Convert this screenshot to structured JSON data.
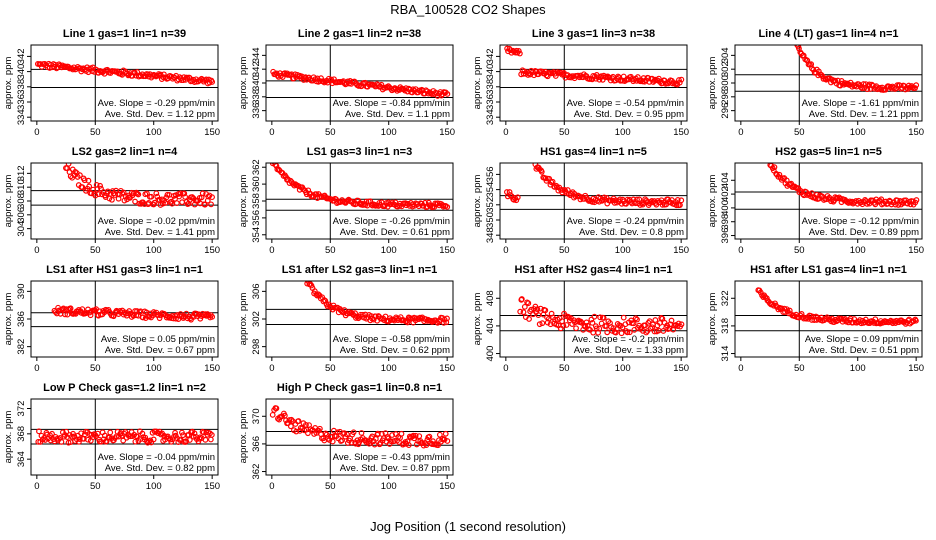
{
  "figure": {
    "title": "RBA_100528  CO2 Shapes",
    "xlabel": "Jog Position (1 second resolution)",
    "point_color": "#ff0000"
  },
  "chart_data": [
    {
      "type": "scatter",
      "title": "Line 1 gas=1 lin=1 n=39",
      "ylabel": "approx. ppm",
      "xlim": [
        -5,
        155
      ],
      "ylim": [
        333.5,
        343.5
      ],
      "yticks": [
        334,
        336,
        338,
        340,
        342
      ],
      "xticks": [
        0,
        50,
        100,
        150
      ],
      "vline": 50,
      "hlines": [
        340.3,
        337.9
      ],
      "slope": "Ave. Slope = -0.29 ppm/min",
      "stddev": "Ave. Std. Dev. = 1.12 ppm",
      "series": [
        {
          "x": [
            1,
            150
          ],
          "start": 340.9,
          "end": 338.7,
          "spread": 0.35,
          "curve": "linear"
        }
      ]
    },
    {
      "type": "scatter",
      "title": "Line 2 gas=1 lin=2 n=38",
      "ylabel": "approx. ppm",
      "xlim": [
        -5,
        155
      ],
      "ylim": [
        334.5,
        345.5
      ],
      "yticks": [
        336,
        338,
        340,
        342,
        344
      ],
      "xticks": [
        0,
        50,
        100,
        150
      ],
      "vline": 50,
      "hlines": [
        340.3,
        337.9
      ],
      "slope": "Ave. Slope = -0.84 ppm/min",
      "stddev": "Ave. Std. Dev. = 1.1 ppm",
      "series": [
        {
          "x": [
            1,
            150
          ],
          "start": 341.3,
          "end": 338.3,
          "spread": 0.35,
          "curve": "linear"
        }
      ]
    },
    {
      "type": "scatter",
      "title": "Line 3 gas=1 lin=3 n=38",
      "ylabel": "approx. ppm",
      "xlim": [
        -5,
        155
      ],
      "ylim": [
        333.5,
        343.5
      ],
      "yticks": [
        334,
        336,
        338,
        340,
        342
      ],
      "xticks": [
        0,
        50,
        100,
        150
      ],
      "vline": 50,
      "hlines": [
        340.3,
        337.9
      ],
      "slope": "Ave. Slope = -0.54 ppm/min",
      "stddev": "Ave. Std. Dev. = 0.95 ppm",
      "series": [
        {
          "x": [
            1,
            12
          ],
          "start": 342.8,
          "end": 342.4,
          "spread": 0.3,
          "curve": "linear"
        },
        {
          "x": [
            13,
            150
          ],
          "start": 339.9,
          "end": 338.6,
          "spread": 0.35,
          "curve": "linear"
        }
      ]
    },
    {
      "type": "scatter",
      "title": "Line 4 (LT) gas=1 lin=4 n=1",
      "ylabel": "approx. ppm",
      "xlim": [
        -5,
        155
      ],
      "ylim": [
        294.5,
        305.5
      ],
      "yticks": [
        296,
        298,
        300,
        302,
        304
      ],
      "xticks": [
        0,
        50,
        100,
        150
      ],
      "vline": 50,
      "hlines": [
        301.2,
        298.8
      ],
      "slope": "Ave. Slope = -1.61 ppm/min",
      "stddev": "Ave. Std. Dev. = 1.21 ppm",
      "series": [
        {
          "x": [
            47,
            150
          ],
          "start": 305.8,
          "end": 299.3,
          "spread": 0.4,
          "curve": "exp"
        }
      ]
    },
    {
      "type": "scatter",
      "title": "LS2 gas=2 lin=1 n=4",
      "ylabel": "approx. ppm",
      "xlim": [
        -5,
        155
      ],
      "ylim": [
        302.5,
        313.5
      ],
      "yticks": [
        304,
        306,
        308,
        310,
        312
      ],
      "xticks": [
        0,
        50,
        100,
        150
      ],
      "vline": 50,
      "hlines": [
        309.5,
        307.4
      ],
      "slope": "Ave. Slope = -0.02 ppm/min",
      "stddev": "Ave. Std. Dev. = 1.41 ppm",
      "series": [
        {
          "x": [
            25,
            150
          ],
          "start": 313,
          "end": 308.2,
          "spread": 0.9,
          "curve": "exp"
        }
      ]
    },
    {
      "type": "scatter",
      "title": "LS1 gas=3 lin=1 n=3",
      "ylabel": "approx. ppm",
      "xlim": [
        -5,
        155
      ],
      "ylim": [
        353.5,
        362.5
      ],
      "yticks": [
        354,
        356,
        358,
        360,
        362
      ],
      "xticks": [
        0,
        50,
        100,
        150
      ],
      "vline": 50,
      "hlines": [
        358.2,
        356.9
      ],
      "slope": "Ave. Slope = -0.26 ppm/min",
      "stddev": "Ave. Std. Dev. = 0.61 ppm",
      "series": [
        {
          "x": [
            1,
            150
          ],
          "start": 362.5,
          "end": 357.5,
          "spread": 0.3,
          "curve": "exp"
        }
      ]
    },
    {
      "type": "scatter",
      "title": "HS1 gas=4 lin=1 n=5",
      "ylabel": "approx. ppm",
      "xlim": [
        -5,
        155
      ],
      "ylim": [
        347.5,
        357.5
      ],
      "yticks": [
        348,
        350,
        352,
        354,
        356
      ],
      "xticks": [
        0,
        50,
        100,
        150
      ],
      "vline": 50,
      "hlines": [
        353.2,
        351.4
      ],
      "slope": "Ave. Slope = -0.24 ppm/min",
      "stddev": "Ave. Std. Dev. = 0.8 ppm",
      "series": [
        {
          "x": [
            1,
            10
          ],
          "start": 353.5,
          "end": 352.8,
          "spread": 0.4,
          "curve": "linear"
        },
        {
          "x": [
            25,
            150
          ],
          "start": 357.2,
          "end": 352.3,
          "spread": 0.4,
          "curve": "exp"
        }
      ]
    },
    {
      "type": "scatter",
      "title": "HS2 gas=5 lin=1 n=5",
      "ylabel": "approx. ppm",
      "xlim": [
        -5,
        155
      ],
      "ylim": [
        395.5,
        406.5
      ],
      "yticks": [
        396,
        398,
        400,
        402,
        404
      ],
      "xticks": [
        0,
        50,
        100,
        150
      ],
      "vline": 50,
      "hlines": [
        402.3,
        399.8
      ],
      "slope": "Ave. Slope = -0.12 ppm/min",
      "stddev": "Ave. Std. Dev. = 0.89 ppm",
      "series": [
        {
          "x": [
            25,
            150
          ],
          "start": 406.5,
          "end": 400.8,
          "spread": 0.4,
          "curve": "exp"
        }
      ]
    },
    {
      "type": "scatter",
      "title": "LS1 after HS1 gas=3 lin=1 n=1",
      "ylabel": "approx. ppm",
      "xlim": [
        -5,
        155
      ],
      "ylim": [
        380.5,
        391.5
      ],
      "yticks": [
        382,
        386,
        390
      ],
      "xticks": [
        0,
        50,
        100,
        150
      ],
      "vline": 50,
      "hlines": [
        386.9,
        384.9
      ],
      "slope": "Ave. Slope = 0.05 ppm/min",
      "stddev": "Ave. Std. Dev. = 0.67 ppm",
      "series": [
        {
          "x": [
            15,
            150
          ],
          "start": 387.2,
          "end": 386.2,
          "spread": 0.5,
          "curve": "linear"
        }
      ]
    },
    {
      "type": "scatter",
      "title": "LS1 after LS2 gas=3 lin=1 n=1",
      "ylabel": "approx. ppm",
      "xlim": [
        -5,
        155
      ],
      "ylim": [
        296.5,
        307.5
      ],
      "yticks": [
        298,
        302,
        306
      ],
      "xticks": [
        0,
        50,
        100,
        150
      ],
      "vline": 50,
      "hlines": [
        303.4,
        301.2
      ],
      "slope": "Ave. Slope = -0.58 ppm/min",
      "stddev": "Ave. Std. Dev. = 0.62 ppm",
      "series": [
        {
          "x": [
            30,
            150
          ],
          "start": 307.5,
          "end": 301.8,
          "spread": 0.4,
          "curve": "exp"
        }
      ]
    },
    {
      "type": "scatter",
      "title": "HS1 after HS2 gas=4 lin=1 n=1",
      "ylabel": "approx. ppm",
      "xlim": [
        -5,
        155
      ],
      "ylim": [
        399.5,
        410.5
      ],
      "yticks": [
        400,
        404,
        408
      ],
      "xticks": [
        0,
        50,
        100,
        150
      ],
      "vline": 50,
      "hlines": [
        405.5,
        403.3
      ],
      "slope": "Ave. Slope = -0.2 ppm/min",
      "stddev": "Ave. Std. Dev. = 1.33 ppm",
      "series": [
        {
          "x": [
            12,
            150
          ],
          "start": 407,
          "end": 404,
          "spread": 1.2,
          "curve": "exp"
        }
      ]
    },
    {
      "type": "scatter",
      "title": "HS1 after LS1 gas=4 lin=1 n=1",
      "ylabel": "approx. ppm",
      "xlim": [
        -5,
        155
      ],
      "ylim": [
        313.5,
        324.5
      ],
      "yticks": [
        314,
        318,
        322
      ],
      "xticks": [
        0,
        50,
        100,
        150
      ],
      "vline": 50,
      "hlines": [
        319.5,
        317.3
      ],
      "slope": "Ave. Slope = 0.09 ppm/min",
      "stddev": "Ave. Std. Dev. = 0.51 ppm",
      "series": [
        {
          "x": [
            15,
            150
          ],
          "start": 323,
          "end": 318.6,
          "spread": 0.35,
          "curve": "exp"
        }
      ]
    },
    {
      "type": "scatter",
      "title": "Low P Check gas=1.2 lin=1 n=2",
      "ylabel": "approx. ppm",
      "xlim": [
        -5,
        155
      ],
      "ylim": [
        361.5,
        373.5
      ],
      "yticks": [
        364,
        368,
        372
      ],
      "xticks": [
        0,
        50,
        100,
        150
      ],
      "vline": 50,
      "hlines": [
        368.7,
        366.4
      ],
      "slope": "Ave. Slope = -0.04 ppm/min",
      "stddev": "Ave. Std. Dev. = 0.82 ppm",
      "series": [
        {
          "x": [
            1,
            150
          ],
          "start": 367.5,
          "end": 367.5,
          "spread": 0.9,
          "curve": "linear"
        }
      ]
    },
    {
      "type": "scatter",
      "title": "High P Check gas=1 lin=0.8 n=1",
      "ylabel": "approx. ppm",
      "xlim": [
        -5,
        155
      ],
      "ylim": [
        361.5,
        372.5
      ],
      "yticks": [
        362,
        366,
        370
      ],
      "xticks": [
        0,
        50,
        100,
        150
      ],
      "vline": 50,
      "hlines": [
        367.8,
        365.8
      ],
      "slope": "Ave. Slope = -0.43 ppm/min",
      "stddev": "Ave. Std. Dev. = 0.87 ppm",
      "series": [
        {
          "x": [
            1,
            150
          ],
          "start": 371,
          "end": 366.6,
          "spread": 0.9,
          "curve": "exp"
        }
      ]
    }
  ]
}
